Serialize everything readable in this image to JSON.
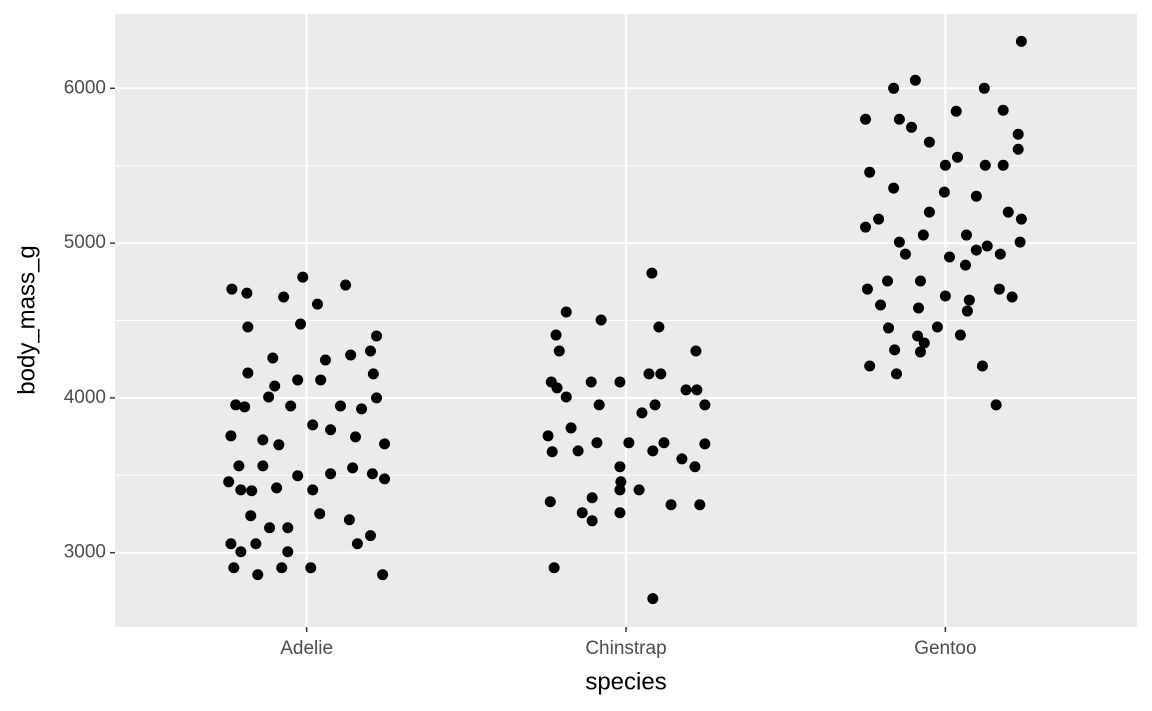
{
  "chart_data": {
    "type": "scatter",
    "xlabel": "species",
    "ylabel": "body_mass_g",
    "xlim": [
      0.4,
      3.6
    ],
    "ylim": [
      2520,
      6480
    ],
    "xticks": [
      {
        "value": 1,
        "label": "Adelie"
      },
      {
        "value": 2,
        "label": "Chinstrap"
      },
      {
        "value": 3,
        "label": "Gentoo"
      }
    ],
    "yticks": [
      3000,
      4000,
      5000,
      6000
    ],
    "minor_yticks": [
      3500,
      4500,
      5500
    ],
    "grid": true,
    "color": "#000000",
    "x": [
      0.766,
      0.813,
      0.988,
      1.122,
      0.928,
      1.034,
      0.816,
      0.981,
      1.219,
      0.763,
      0.778,
      0.806,
      0.881,
      0.95,
      1.106,
      1.172,
      1.219,
      0.756,
      0.788,
      0.794,
      0.828,
      0.863,
      0.906,
      0.972,
      1.019,
      1.075,
      1.144,
      1.206,
      1.244,
      0.772,
      0.847,
      0.922,
      1.013,
      1.238,
      0.763,
      0.794,
      0.841,
      0.941,
      1.159,
      1.2,
      0.825,
      0.884,
      0.941,
      1.041,
      1.134,
      0.913,
      1.019,
      1.075,
      1.153,
      1.244,
      0.863,
      0.816,
      0.894,
      1.059,
      1.138,
      1.209,
      0.9,
      1.044,
      0.972,
      1.2,
      1.813,
      1.922,
      1.781,
      2.103,
      2.081,
      2.219,
      1.791,
      1.766,
      1.891,
      1.981,
      2.072,
      2.109,
      2.188,
      2.222,
      2.247,
      1.784,
      1.813,
      1.916,
      2.05,
      2.091,
      1.756,
      1.828,
      1.909,
      2.009,
      2.119,
      2.247,
      1.769,
      1.85,
      1.981,
      2.084,
      2.175,
      2.216,
      1.763,
      1.894,
      1.981,
      2.041,
      2.141,
      2.231,
      1.863,
      1.894,
      1.981,
      1.775,
      2.084,
      1.984,
      3.238,
      2.906,
      2.838,
      3.034,
      3.122,
      2.75,
      2.856,
      2.894,
      2.95,
      3.038,
      3.228,
      3.228,
      2.763,
      2.838,
      3.0,
      3.125,
      3.181,
      3.097,
      3.197,
      3.238,
      2.791,
      2.75,
      2.95,
      2.856,
      2.931,
      3.066,
      3.234,
      3.131,
      2.875,
      3.013,
      3.063,
      3.172,
      2.756,
      2.819,
      2.797,
      2.922,
      3.0,
      3.075,
      3.169,
      3.209,
      2.822,
      2.916,
      2.975,
      3.047,
      2.913,
      2.841,
      2.934,
      2.847,
      2.763,
      3.116,
      3.159,
      3.069,
      2.922,
      3.097,
      2.997,
      3.181
    ],
    "values": [
      4703,
      4677,
      4780,
      4729,
      4652,
      4606,
      4458,
      4477,
      4400,
      3755,
      3955,
      3942,
      4006,
      3948,
      3948,
      3929,
      4000,
      3458,
      3561,
      3406,
      3400,
      3561,
      3419,
      3497,
      3406,
      3510,
      3548,
      3510,
      3477,
      2903,
      2858,
      2903,
      2903,
      2858,
      3058,
      3006,
      3058,
      3006,
      3058,
      3110,
      3239,
      3161,
      3161,
      3252,
      3213,
      3697,
      3826,
      3794,
      3748,
      3703,
      3729,
      4161,
      4258,
      4245,
      4277,
      4155,
      4077,
      4116,
      4116,
      4303,
      4555,
      4503,
      4406,
      4458,
      4806,
      4303,
      4303,
      4103,
      4103,
      4103,
      4155,
      4155,
      4052,
      4052,
      3955,
      4065,
      4006,
      3955,
      3903,
      3955,
      3755,
      3806,
      3710,
      3710,
      3710,
      3703,
      3652,
      3658,
      3555,
      3658,
      3606,
      3555,
      3329,
      3355,
      3406,
      3406,
      3310,
      3310,
      3258,
      3206,
      3258,
      2903,
      2703,
      3458,
      6303,
      6052,
      6000,
      5852,
      6000,
      5800,
      5800,
      5748,
      5652,
      5555,
      5703,
      5606,
      5458,
      5355,
      5503,
      5503,
      5503,
      5303,
      5200,
      5155,
      5155,
      5103,
      5200,
      5006,
      5052,
      5052,
      5006,
      4981,
      4929,
      4910,
      4858,
      4929,
      4703,
      4755,
      4600,
      4755,
      4658,
      4632,
      4703,
      4652,
      4452,
      4581,
      4458,
      4406,
      4400,
      4310,
      4355,
      4155,
      4206,
      4206,
      3955,
      4561,
      4297,
      4955,
      5329,
      5858
    ]
  }
}
